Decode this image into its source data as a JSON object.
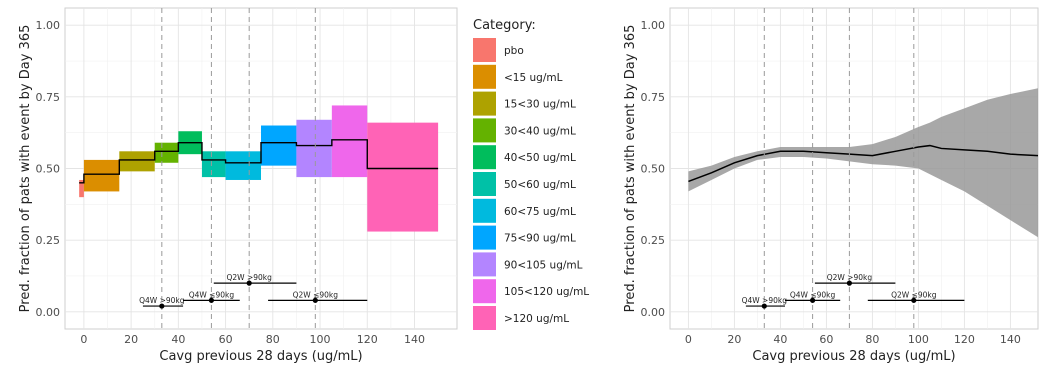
{
  "chart_data": [
    {
      "type": "step",
      "xlabel": "Cavg previous 28 days (ug/mL)",
      "ylabel": "Pred. fraction of pats with event by Day 365",
      "xlim": [
        -8,
        158
      ],
      "ylim": [
        -0.06,
        1.06
      ],
      "xticks": [
        "0",
        "20",
        "40",
        "60",
        "80",
        "100",
        "120",
        "140"
      ],
      "xtick_values": [
        0,
        20,
        40,
        60,
        80,
        100,
        120,
        140
      ],
      "yticks": [
        "0.00",
        "0.25",
        "0.50",
        "0.75",
        "1.00"
      ],
      "ytick_values": [
        0,
        0.25,
        0.5,
        0.75,
        1.0
      ],
      "vlines": [
        33,
        54,
        70,
        98
      ],
      "grid": true,
      "legend_position": "right",
      "legend_title": "Category:",
      "categories": [
        "pbo",
        "<15 ug/mL",
        "15<30 ug/mL",
        "30<40 ug/mL",
        "40<50 ug/mL",
        "50<60 ug/mL",
        "60<75 ug/mL",
        "75<90 ug/mL",
        "90<105 ug/mL",
        "105<120 ug/mL",
        ">120 ug/mL"
      ],
      "colors": [
        "#F8766D",
        "#DB8E00",
        "#AEA200",
        "#64B200",
        "#00BD5C",
        "#00C1A7",
        "#00BADE",
        "#00A6FF",
        "#B385FF",
        "#EF67EB",
        "#FF63B6"
      ],
      "boxes": [
        {
          "x0": -2,
          "x1": 0,
          "lo": 0.4,
          "hi": 0.46,
          "est": 0.45
        },
        {
          "x0": 0,
          "x1": 15,
          "lo": 0.42,
          "hi": 0.53,
          "est": 0.48
        },
        {
          "x0": 15,
          "x1": 30,
          "lo": 0.49,
          "hi": 0.56,
          "est": 0.53
        },
        {
          "x0": 30,
          "x1": 40,
          "lo": 0.52,
          "hi": 0.59,
          "est": 0.56
        },
        {
          "x0": 40,
          "x1": 50,
          "lo": 0.55,
          "hi": 0.63,
          "est": 0.59
        },
        {
          "x0": 50,
          "x1": 60,
          "lo": 0.47,
          "hi": 0.56,
          "est": 0.53
        },
        {
          "x0": 60,
          "x1": 75,
          "lo": 0.46,
          "hi": 0.56,
          "est": 0.52
        },
        {
          "x0": 75,
          "x1": 90,
          "lo": 0.51,
          "hi": 0.65,
          "est": 0.59
        },
        {
          "x0": 90,
          "x1": 105,
          "lo": 0.47,
          "hi": 0.67,
          "est": 0.58
        },
        {
          "x0": 105,
          "x1": 120,
          "lo": 0.47,
          "hi": 0.72,
          "est": 0.6
        },
        {
          "x0": 120,
          "x1": 150,
          "lo": 0.28,
          "hi": 0.66,
          "est": 0.5
        }
      ],
      "dose_annotations": [
        {
          "label": "Q4W >90kg",
          "center": 33,
          "lo": 25,
          "hi": 42,
          "y": 0.02
        },
        {
          "label": "Q4W ≤90kg",
          "center": 54,
          "lo": 42,
          "hi": 66,
          "y": 0.04
        },
        {
          "label": "Q2W >90kg",
          "center": 70,
          "lo": 55,
          "hi": 90,
          "y": 0.1
        },
        {
          "label": "Q2W ≤90kg",
          "center": 98,
          "lo": 78,
          "hi": 120,
          "y": 0.04
        }
      ]
    },
    {
      "type": "line",
      "xlabel": "Cavg previous 28 days (ug/mL)",
      "ylabel": "Pred. fraction of pats with event by Day 365",
      "xlim": [
        -8,
        152
      ],
      "ylim": [
        -0.06,
        1.06
      ],
      "xticks": [
        "0",
        "20",
        "40",
        "60",
        "80",
        "100",
        "120",
        "140"
      ],
      "xtick_values": [
        0,
        20,
        40,
        60,
        80,
        100,
        120,
        140
      ],
      "yticks": [
        "0.00",
        "0.25",
        "0.50",
        "0.75",
        "1.00"
      ],
      "ytick_values": [
        0,
        0.25,
        0.5,
        0.75,
        1.0
      ],
      "vlines": [
        33,
        54,
        70,
        98
      ],
      "grid": true,
      "band_color": "#999999",
      "x": [
        0,
        10,
        20,
        30,
        40,
        50,
        60,
        70,
        80,
        90,
        100,
        105,
        110,
        120,
        130,
        140,
        152
      ],
      "y": [
        0.455,
        0.485,
        0.52,
        0.545,
        0.56,
        0.56,
        0.555,
        0.55,
        0.545,
        0.56,
        0.575,
        0.58,
        0.57,
        0.565,
        0.56,
        0.55,
        0.545
      ],
      "lower": [
        0.42,
        0.46,
        0.5,
        0.53,
        0.54,
        0.54,
        0.535,
        0.525,
        0.515,
        0.51,
        0.5,
        0.48,
        0.46,
        0.42,
        0.37,
        0.32,
        0.26
      ],
      "upper": [
        0.49,
        0.51,
        0.54,
        0.56,
        0.575,
        0.575,
        0.575,
        0.575,
        0.585,
        0.61,
        0.645,
        0.66,
        0.68,
        0.71,
        0.74,
        0.76,
        0.78
      ],
      "dose_annotations": [
        {
          "label": "Q4W >90kg",
          "center": 33,
          "lo": 25,
          "hi": 42,
          "y": 0.02
        },
        {
          "label": "Q4W ≤90kg",
          "center": 54,
          "lo": 42,
          "hi": 66,
          "y": 0.04
        },
        {
          "label": "Q2W >90kg",
          "center": 70,
          "lo": 55,
          "hi": 90,
          "y": 0.1
        },
        {
          "label": "Q2W ≤90kg",
          "center": 98,
          "lo": 78,
          "hi": 120,
          "y": 0.04
        }
      ]
    }
  ]
}
